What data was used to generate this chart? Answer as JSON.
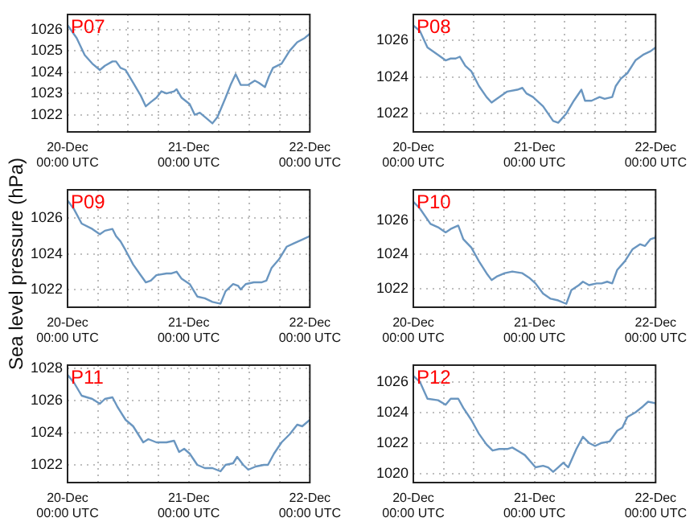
{
  "chart_data": [
    {
      "type": "line",
      "title": "P07",
      "x": [
        "--12-20T00:00",
        "--12-20T01:48",
        "--12-20T03:24",
        "--12-20T04:54",
        "--12-20T06:24",
        "--12-20T07:24",
        "--12-20T08:54",
        "--12-20T09:36",
        "--12-20T10:30",
        "--12-20T11:30",
        "--12-20T13:00",
        "--12-20T14:30",
        "--12-20T15:30",
        "--12-20T16:30",
        "--12-20T17:36",
        "--12-20T18:36",
        "--12-20T19:36",
        "--12-20T21:06",
        "--12-20T21:36",
        "--12-20T22:36",
        "--12-21T00:12",
        "--12-21T01:12",
        "--12-21T02:12",
        "--12-21T03:12",
        "--12-21T04:42",
        "--12-21T05:42",
        "--12-21T07:18",
        "--12-21T08:18",
        "--12-21T09:18",
        "--12-21T10:18",
        "--12-21T11:48",
        "--12-21T13:06",
        "--12-21T13:54",
        "--12-21T15:06",
        "--12-21T15:54",
        "--12-21T16:42",
        "--12-21T18:24",
        "--12-21T20:00",
        "--12-21T21:30",
        "--12-21T23:00",
        "--12-22T00:00"
      ],
      "series": [
        {
          "color": "#6a96c0",
          "values": [
            1026.2,
            1025.6,
            1024.8,
            1024.4,
            1024.1,
            1024.3,
            1024.5,
            1024.5,
            1024.2,
            1024.1,
            1023.5,
            1022.9,
            1022.4,
            1022.6,
            1022.8,
            1023.1,
            1023.0,
            1023.1,
            1023.2,
            1022.8,
            1022.5,
            1022.0,
            1022.1,
            1021.9,
            1021.6,
            1021.9,
            1022.8,
            1023.4,
            1023.9,
            1023.4,
            1023.4,
            1023.6,
            1023.5,
            1023.3,
            1023.8,
            1024.2,
            1024.4,
            1025.0,
            1025.4,
            1025.6,
            1025.8
          ]
        }
      ],
      "xlim": [
        "--12-20T00:00",
        "--12-22T00:00"
      ],
      "xticks": [
        {
          "value": "--12-20T00:00",
          "label": "20-Dec\n00:00 UTC"
        },
        {
          "value": "--12-20T06:00",
          "label": null
        },
        {
          "value": "--12-20T12:00",
          "label": null
        },
        {
          "value": "--12-20T18:00",
          "label": null
        },
        {
          "value": "--12-21T00:00",
          "label": "21-Dec\n00:00 UTC"
        },
        {
          "value": "--12-21T06:00",
          "label": null
        },
        {
          "value": "--12-21T12:00",
          "label": null
        },
        {
          "value": "--12-21T18:00",
          "label": null
        },
        {
          "value": "--12-22T00:00",
          "label": "22-Dec\n00:00 UTC"
        }
      ],
      "ylim": [
        1021.2,
        1026.7
      ],
      "yticks": [
        1022,
        1023,
        1024,
        1025,
        1026
      ],
      "grid": true,
      "marker": "none"
    },
    {
      "type": "line",
      "title": "P08",
      "x": [
        "--12-20T00:00",
        "--12-20T01:18",
        "--12-20T02:48",
        "--12-20T04:54",
        "--12-20T06:24",
        "--12-20T07:24",
        "--12-20T08:24",
        "--12-20T09:12",
        "--12-20T10:18",
        "--12-20T11:30",
        "--12-20T13:00",
        "--12-20T14:30",
        "--12-20T15:30",
        "--12-20T16:30",
        "--12-20T18:36",
        "--12-20T20:36",
        "--12-20T21:36",
        "--12-20T22:24",
        "--12-20T23:42",
        "--12-21T01:42",
        "--12-21T03:42",
        "--12-21T04:42",
        "--12-21T06:18",
        "--12-21T07:48",
        "--12-21T09:18",
        "--12-21T10:00",
        "--12-21T11:18",
        "--12-21T12:54",
        "--12-21T13:54",
        "--12-21T15:24",
        "--12-21T16:06",
        "--12-21T17:06",
        "--12-21T18:24",
        "--12-21T20:00",
        "--12-21T21:30",
        "--12-21T23:00",
        "--12-22T00:00"
      ],
      "series": [
        {
          "color": "#6a96c0",
          "values": [
            1026.8,
            1026.5,
            1025.6,
            1025.2,
            1024.9,
            1025.0,
            1025.0,
            1025.1,
            1024.6,
            1024.3,
            1023.5,
            1022.9,
            1022.6,
            1022.8,
            1023.2,
            1023.3,
            1023.4,
            1023.1,
            1022.9,
            1022.4,
            1021.6,
            1021.5,
            1022.0,
            1022.7,
            1023.3,
            1022.7,
            1022.7,
            1022.9,
            1022.8,
            1022.9,
            1023.5,
            1023.9,
            1024.2,
            1024.9,
            1025.2,
            1025.4,
            1025.6
          ]
        }
      ],
      "xlim": [
        "--12-20T00:00",
        "--12-22T00:00"
      ],
      "xticks": [
        {
          "value": "--12-20T00:00",
          "label": "20-Dec\n00:00 UTC"
        },
        {
          "value": "--12-20T06:00",
          "label": null
        },
        {
          "value": "--12-20T12:00",
          "label": null
        },
        {
          "value": "--12-20T18:00",
          "label": null
        },
        {
          "value": "--12-21T00:00",
          "label": "21-Dec\n00:00 UTC"
        },
        {
          "value": "--12-21T06:00",
          "label": null
        },
        {
          "value": "--12-21T12:00",
          "label": null
        },
        {
          "value": "--12-21T18:00",
          "label": null
        },
        {
          "value": "--12-22T00:00",
          "label": "22-Dec\n00:00 UTC"
        }
      ],
      "ylim": [
        1021.0,
        1027.4
      ],
      "yticks": [
        1022,
        1024,
        1026
      ],
      "grid": true,
      "marker": "none"
    },
    {
      "type": "line",
      "title": "P09",
      "ylabel": "Sea level pressure (hPa)",
      "x": [
        "--12-20T00:00",
        "--12-20T01:18",
        "--12-20T02:48",
        "--12-20T04:54",
        "--12-20T06:24",
        "--12-20T07:24",
        "--12-20T08:54",
        "--12-20T09:36",
        "--12-20T10:30",
        "--12-20T11:30",
        "--12-20T13:00",
        "--12-20T14:30",
        "--12-20T15:30",
        "--12-20T16:30",
        "--12-20T17:36",
        "--12-20T19:36",
        "--12-20T20:36",
        "--12-20T21:36",
        "--12-20T22:36",
        "--12-21T00:12",
        "--12-21T01:42",
        "--12-21T03:12",
        "--12-21T04:42",
        "--12-21T06:18",
        "--12-21T07:18",
        "--12-21T08:48",
        "--12-21T09:48",
        "--12-21T10:18",
        "--12-21T11:18",
        "--12-21T12:54",
        "--12-21T14:24",
        "--12-21T15:24",
        "--12-21T16:24",
        "--12-21T17:54",
        "--12-21T19:24",
        "--12-21T20:54",
        "--12-21T22:30",
        "--12-22T00:00"
      ],
      "series": [
        {
          "color": "#6a96c0",
          "values": [
            1027.0,
            1026.5,
            1025.7,
            1025.4,
            1025.1,
            1025.3,
            1025.4,
            1025.0,
            1024.7,
            1024.2,
            1023.4,
            1022.8,
            1022.4,
            1022.5,
            1022.8,
            1022.9,
            1022.9,
            1023.0,
            1022.6,
            1022.3,
            1021.6,
            1021.5,
            1021.3,
            1021.2,
            1021.9,
            1022.3,
            1022.2,
            1022.0,
            1022.3,
            1022.4,
            1022.4,
            1022.5,
            1023.2,
            1023.7,
            1024.4,
            1024.6,
            1024.8,
            1025.0
          ]
        }
      ],
      "xlim": [
        "--12-20T00:00",
        "--12-22T00:00"
      ],
      "xticks": [
        {
          "value": "--12-20T00:00",
          "label": "20-Dec\n00:00 UTC"
        },
        {
          "value": "--12-20T06:00",
          "label": null
        },
        {
          "value": "--12-20T12:00",
          "label": null
        },
        {
          "value": "--12-20T18:00",
          "label": null
        },
        {
          "value": "--12-21T00:00",
          "label": "21-Dec\n00:00 UTC"
        },
        {
          "value": "--12-21T06:00",
          "label": null
        },
        {
          "value": "--12-21T12:00",
          "label": null
        },
        {
          "value": "--12-21T18:00",
          "label": null
        },
        {
          "value": "--12-22T00:00",
          "label": "22-Dec\n00:00 UTC"
        }
      ],
      "ylim": [
        1021.0,
        1027.6
      ],
      "yticks": [
        1022,
        1024,
        1026
      ],
      "grid": true,
      "marker": "none"
    },
    {
      "type": "line",
      "title": "P10",
      "x": [
        "--12-20T00:00",
        "--12-20T01:18",
        "--12-20T03:24",
        "--12-20T04:54",
        "--12-20T06:24",
        "--12-20T07:24",
        "--12-20T08:54",
        "--12-20T09:54",
        "--12-20T11:30",
        "--12-20T13:00",
        "--12-20T14:30",
        "--12-20T15:30",
        "--12-20T16:30",
        "--12-20T18:06",
        "--12-20T19:36",
        "--12-20T21:36",
        "--12-20T23:06",
        "--12-21T00:12",
        "--12-21T01:42",
        "--12-21T03:12",
        "--12-21T04:42",
        "--12-21T06:18",
        "--12-21T07:18",
        "--12-21T08:48",
        "--12-21T09:36",
        "--12-21T10:48",
        "--12-21T12:18",
        "--12-21T13:18",
        "--12-21T14:24",
        "--12-21T15:24",
        "--12-21T16:24",
        "--12-21T17:54",
        "--12-21T19:24",
        "--12-21T20:54",
        "--12-21T21:54",
        "--12-21T23:00",
        "--12-22T00:00"
      ],
      "series": [
        {
          "color": "#6a96c0",
          "values": [
            1027.1,
            1026.7,
            1025.8,
            1025.6,
            1025.3,
            1025.5,
            1025.7,
            1024.9,
            1024.4,
            1023.6,
            1022.9,
            1022.5,
            1022.7,
            1022.9,
            1023.0,
            1022.9,
            1022.6,
            1022.3,
            1021.7,
            1021.4,
            1021.3,
            1021.1,
            1021.9,
            1022.2,
            1022.4,
            1022.2,
            1022.3,
            1022.3,
            1022.4,
            1022.3,
            1023.1,
            1023.6,
            1024.3,
            1024.6,
            1024.5,
            1024.9,
            1025.0
          ]
        }
      ],
      "xlim": [
        "--12-20T00:00",
        "--12-22T00:00"
      ],
      "xticks": [
        {
          "value": "--12-20T00:00",
          "label": "20-Dec\n00:00 UTC"
        },
        {
          "value": "--12-20T06:00",
          "label": null
        },
        {
          "value": "--12-20T12:00",
          "label": null
        },
        {
          "value": "--12-20T18:00",
          "label": null
        },
        {
          "value": "--12-21T00:00",
          "label": "21-Dec\n00:00 UTC"
        },
        {
          "value": "--12-21T06:00",
          "label": null
        },
        {
          "value": "--12-21T12:00",
          "label": null
        },
        {
          "value": "--12-21T18:00",
          "label": null
        },
        {
          "value": "--12-22T00:00",
          "label": "22-Dec\n00:00 UTC"
        }
      ],
      "ylim": [
        1020.9,
        1027.8
      ],
      "yticks": [
        1022,
        1024,
        1026
      ],
      "grid": true,
      "marker": "none"
    },
    {
      "type": "line",
      "title": "P11",
      "x": [
        "--12-20T00:00",
        "--12-20T01:18",
        "--12-20T02:48",
        "--12-20T04:54",
        "--12-20T06:24",
        "--12-20T07:24",
        "--12-20T08:54",
        "--12-20T09:54",
        "--12-20T11:30",
        "--12-20T13:00",
        "--12-20T14:00",
        "--12-20T15:00",
        "--12-20T16:00",
        "--12-20T17:36",
        "--12-20T19:36",
        "--12-20T21:06",
        "--12-20T22:06",
        "--12-20T23:06",
        "--12-21T00:12",
        "--12-21T01:42",
        "--12-21T03:12",
        "--12-21T04:42",
        "--12-21T06:18",
        "--12-21T07:18",
        "--12-21T08:48",
        "--12-21T09:36",
        "--12-21T10:48",
        "--12-21T11:48",
        "--12-21T13:18",
        "--12-21T14:54",
        "--12-21T15:42",
        "--12-21T16:54",
        "--12-21T18:24",
        "--12-21T20:00",
        "--12-21T21:30",
        "--12-21T22:30",
        "--12-22T00:00"
      ],
      "series": [
        {
          "color": "#6a96c0",
          "values": [
            1027.6,
            1027.1,
            1026.3,
            1026.1,
            1025.8,
            1026.1,
            1026.2,
            1025.6,
            1024.8,
            1024.4,
            1023.9,
            1023.4,
            1023.6,
            1023.4,
            1023.4,
            1023.5,
            1022.8,
            1023.0,
            1022.7,
            1022.0,
            1021.8,
            1021.8,
            1021.6,
            1022.0,
            1022.1,
            1022.5,
            1022.0,
            1021.7,
            1021.9,
            1022.0,
            1022.0,
            1022.7,
            1023.4,
            1023.9,
            1024.5,
            1024.4,
            1024.8
          ]
        }
      ],
      "xlim": [
        "--12-20T00:00",
        "--12-22T00:00"
      ],
      "xticks": [
        {
          "value": "--12-20T00:00",
          "label": "20-Dec\n00:00 UTC"
        },
        {
          "value": "--12-20T06:00",
          "label": null
        },
        {
          "value": "--12-20T12:00",
          "label": null
        },
        {
          "value": "--12-20T18:00",
          "label": null
        },
        {
          "value": "--12-21T00:00",
          "label": "21-Dec\n00:00 UTC"
        },
        {
          "value": "--12-21T06:00",
          "label": null
        },
        {
          "value": "--12-21T12:00",
          "label": null
        },
        {
          "value": "--12-21T18:00",
          "label": null
        },
        {
          "value": "--12-22T00:00",
          "label": "22-Dec\n00:00 UTC"
        }
      ],
      "ylim": [
        1020.9,
        1028.2
      ],
      "yticks": [
        1022,
        1024,
        1026,
        1028
      ],
      "grid": true,
      "marker": "none"
    },
    {
      "type": "line",
      "title": "P12",
      "x": [
        "--12-20T00:00",
        "--12-20T01:18",
        "--12-20T02:48",
        "--12-20T04:54",
        "--12-20T06:24",
        "--12-20T07:24",
        "--12-20T08:54",
        "--12-20T09:54",
        "--12-20T11:30",
        "--12-20T13:00",
        "--12-20T14:30",
        "--12-20T15:42",
        "--12-20T17:00",
        "--12-20T18:36",
        "--12-20T19:36",
        "--12-20T21:06",
        "--12-20T22:06",
        "--12-21T00:12",
        "--12-21T01:42",
        "--12-21T02:42",
        "--12-21T03:42",
        "--12-21T04:42",
        "--12-21T05:42",
        "--12-21T06:42",
        "--12-21T08:18",
        "--12-21T09:36",
        "--12-21T10:48",
        "--12-21T12:00",
        "--12-21T13:18",
        "--12-21T14:54",
        "--12-21T16:24",
        "--12-21T17:24",
        "--12-21T18:24",
        "--12-21T20:00",
        "--12-21T21:30",
        "--12-21T22:30",
        "--12-22T00:00"
      ],
      "series": [
        {
          "color": "#6a96c0",
          "values": [
            1026.4,
            1026.0,
            1024.9,
            1024.8,
            1024.5,
            1024.9,
            1024.9,
            1024.3,
            1023.5,
            1022.6,
            1021.9,
            1021.5,
            1021.6,
            1021.6,
            1021.7,
            1021.4,
            1021.2,
            1020.4,
            1020.5,
            1020.4,
            1020.1,
            1020.4,
            1020.7,
            1020.4,
            1021.6,
            1022.4,
            1022.0,
            1021.8,
            1022.0,
            1022.1,
            1022.8,
            1023.0,
            1023.7,
            1024.0,
            1024.4,
            1024.7,
            1024.6
          ]
        }
      ],
      "xlim": [
        "--12-20T00:00",
        "--12-22T00:00"
      ],
      "xticks": [
        {
          "value": "--12-20T00:00",
          "label": "20-Dec\n00:00 UTC"
        },
        {
          "value": "--12-20T06:00",
          "label": null
        },
        {
          "value": "--12-20T12:00",
          "label": null
        },
        {
          "value": "--12-20T18:00",
          "label": null
        },
        {
          "value": "--12-21T00:00",
          "label": "21-Dec\n00:00 UTC"
        },
        {
          "value": "--12-21T06:00",
          "label": null
        },
        {
          "value": "--12-21T12:00",
          "label": null
        },
        {
          "value": "--12-21T18:00",
          "label": null
        },
        {
          "value": "--12-22T00:00",
          "label": "22-Dec\n00:00 UTC"
        }
      ],
      "ylim": [
        1019.4,
        1027.1
      ],
      "yticks": [
        1020,
        1022,
        1024,
        1026
      ],
      "grid": true,
      "marker": "none"
    }
  ]
}
